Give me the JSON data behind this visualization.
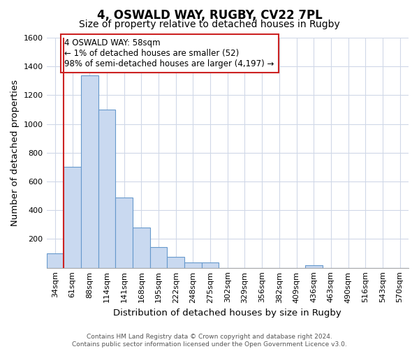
{
  "title_line1": "4, OSWALD WAY, RUGBY, CV22 7PL",
  "title_line2": "Size of property relative to detached houses in Rugby",
  "xlabel": "Distribution of detached houses by size in Rugby",
  "ylabel": "Number of detached properties",
  "categories": [
    "34sqm",
    "61sqm",
    "88sqm",
    "114sqm",
    "141sqm",
    "168sqm",
    "195sqm",
    "222sqm",
    "248sqm",
    "275sqm",
    "302sqm",
    "329sqm",
    "356sqm",
    "382sqm",
    "409sqm",
    "436sqm",
    "463sqm",
    "490sqm",
    "516sqm",
    "543sqm",
    "570sqm"
  ],
  "values": [
    100,
    700,
    1340,
    1100,
    490,
    280,
    145,
    78,
    35,
    35,
    0,
    0,
    0,
    0,
    0,
    18,
    0,
    0,
    0,
    0,
    0
  ],
  "bar_color": "#c9d9f0",
  "bar_edge_color": "#6699cc",
  "vline_color": "#cc2222",
  "annotation_text": "4 OSWALD WAY: 58sqm\n← 1% of detached houses are smaller (52)\n98% of semi-detached houses are larger (4,197) →",
  "annotation_box_color": "#ffffff",
  "annotation_box_edge": "#cc2222",
  "ylim": [
    0,
    1600
  ],
  "yticks": [
    0,
    200,
    400,
    600,
    800,
    1000,
    1200,
    1400,
    1600
  ],
  "background_color": "#ffffff",
  "plot_bg_color": "#ffffff",
  "grid_color": "#d0d8e8",
  "footnote": "Contains HM Land Registry data © Crown copyright and database right 2024.\nContains public sector information licensed under the Open Government Licence v3.0.",
  "title_fontsize": 12,
  "subtitle_fontsize": 10,
  "axis_label_fontsize": 9.5,
  "tick_fontsize": 8,
  "annotation_fontsize": 8.5
}
